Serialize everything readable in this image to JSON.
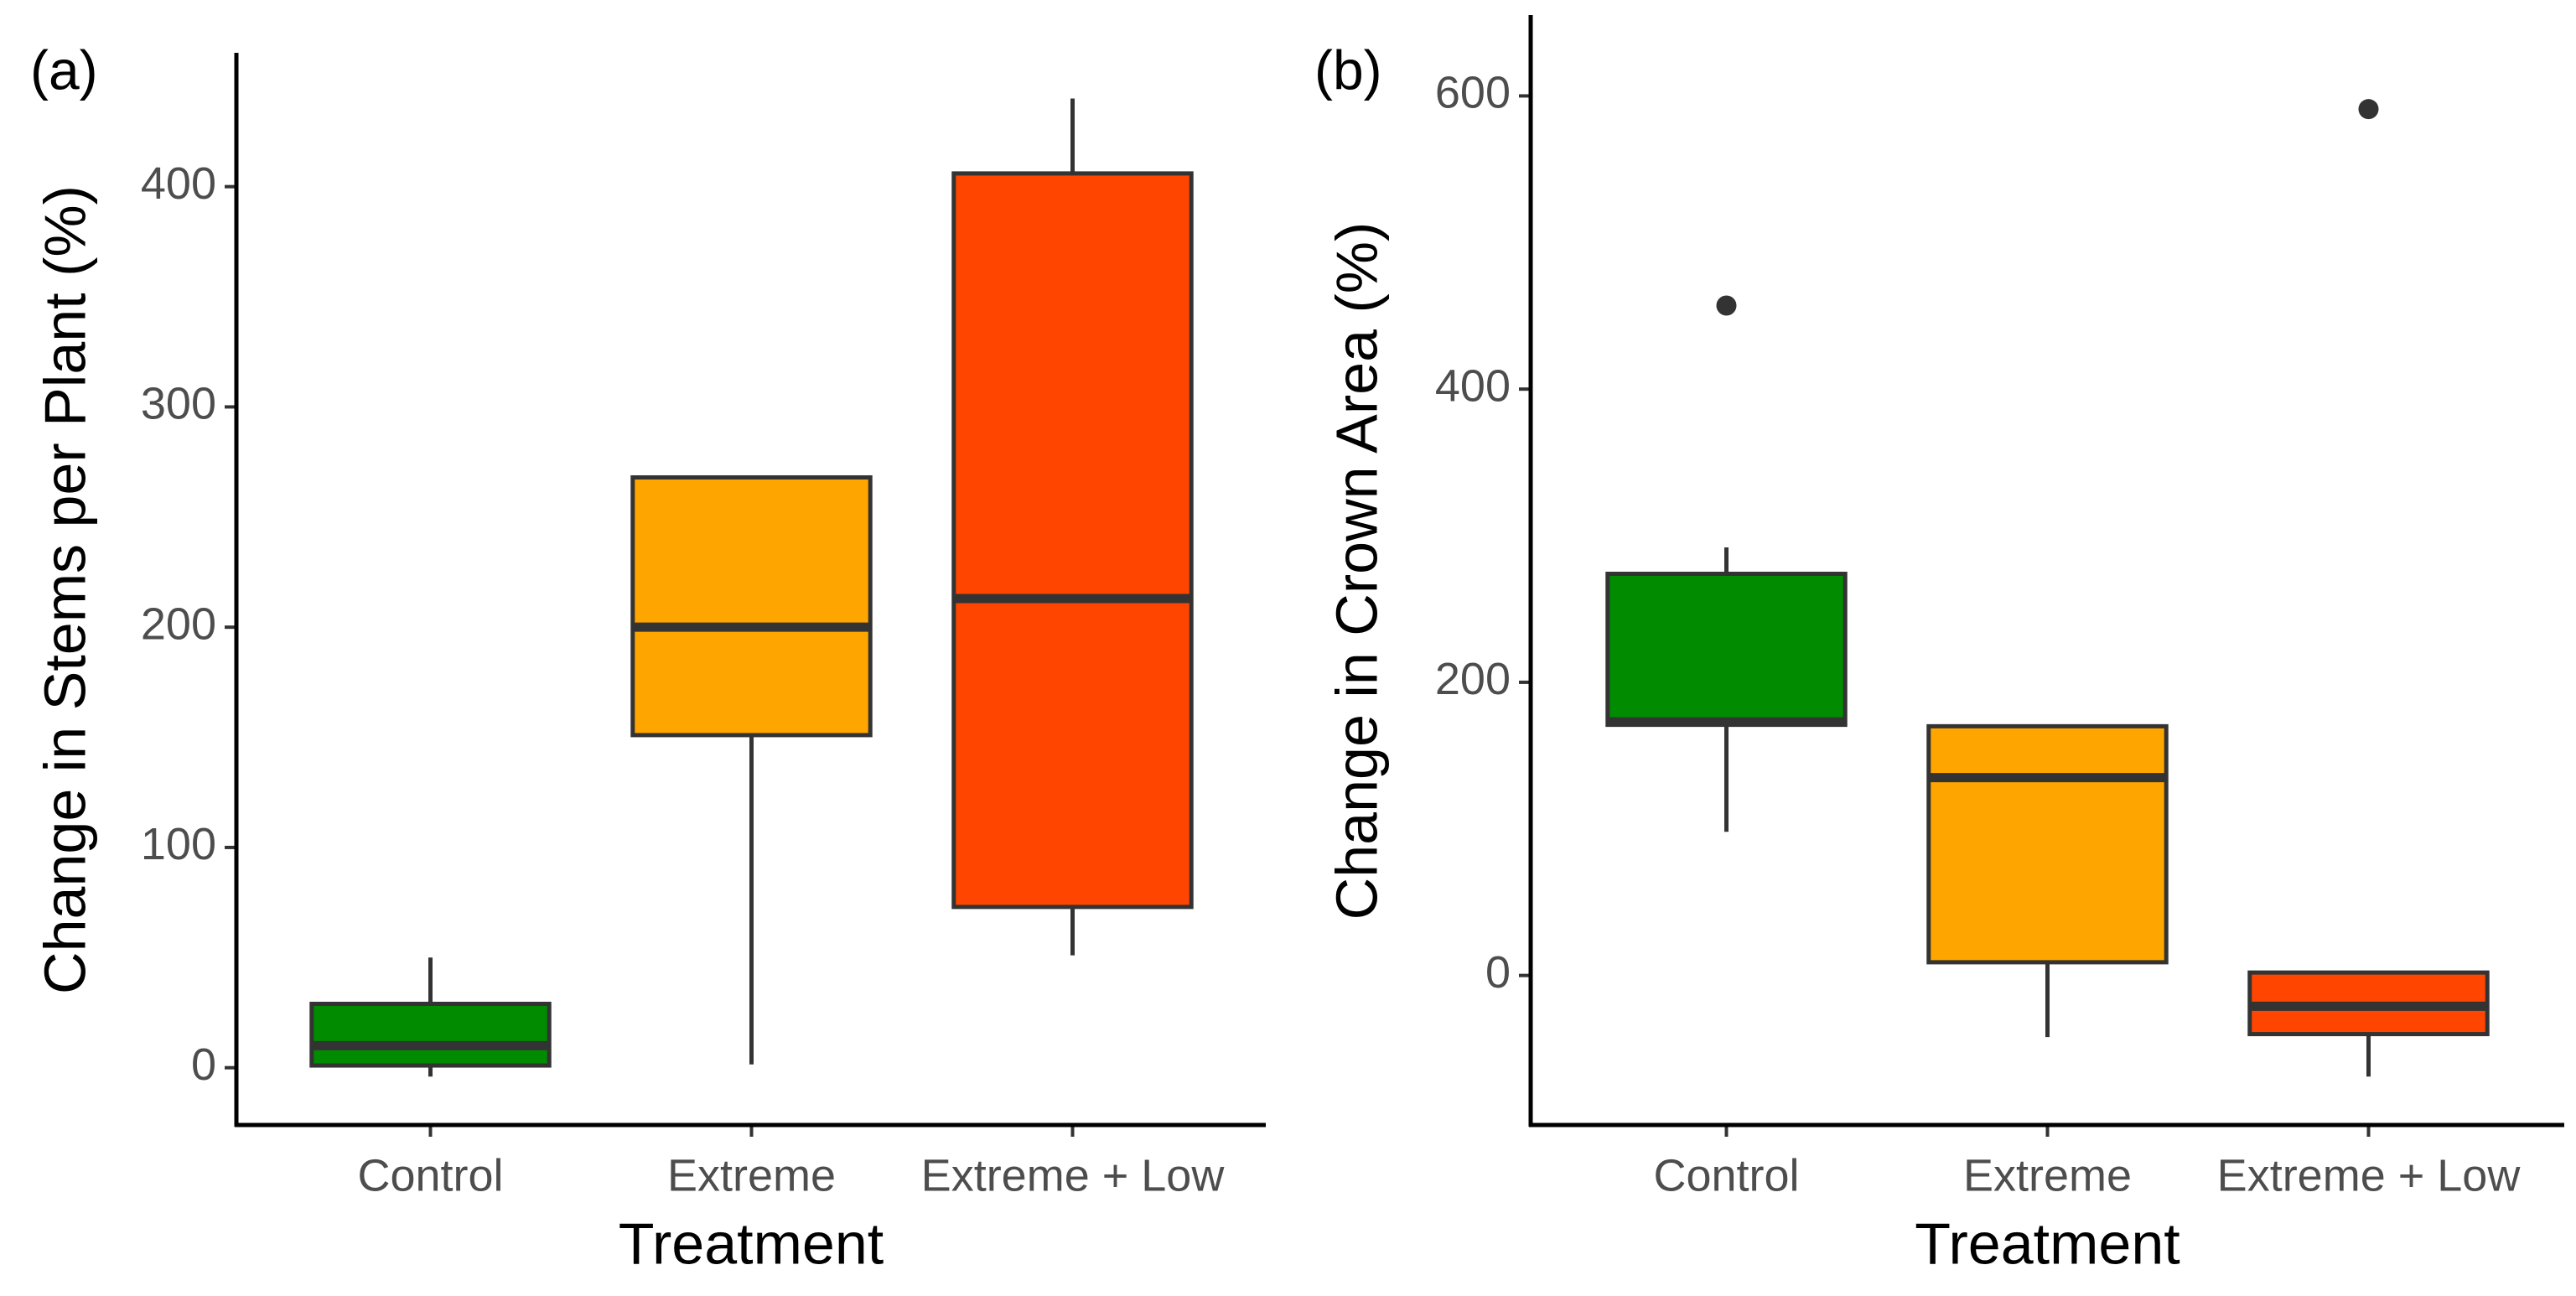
{
  "chart_data": [
    {
      "type": "box",
      "label": "(a)",
      "y_label": "Change in Stems per Plant (%)",
      "x_label": "Treatment",
      "categories": [
        "Control",
        "Extreme",
        "Extreme + Low"
      ],
      "colors": [
        "#008B00",
        "#FFA500",
        "#FF4500"
      ],
      "ylim": [
        -26,
        460
      ],
      "yticks": [
        0,
        100,
        200,
        300,
        400
      ],
      "boxes": [
        {
          "min": -4,
          "q1": 1,
          "median": 10,
          "q3": 29,
          "max": 50
        },
        {
          "min": 1.5,
          "q1": 151,
          "median": 200,
          "q3": 268,
          "max": 268
        },
        {
          "min": 51,
          "q1": 73,
          "median": 213,
          "q3": 406,
          "max": 440
        }
      ]
    },
    {
      "type": "box",
      "label": "(b)",
      "y_label": "Change in Crown Area (%)",
      "x_label": "Treatment",
      "categories": [
        "Control",
        "Extreme",
        "Extreme + Low"
      ],
      "colors": [
        "#008B00",
        "#FFA500",
        "#FF4500"
      ],
      "ylim": [
        -102,
        654
      ],
      "yticks": [
        0,
        200,
        400,
        600
      ],
      "boxes": [
        {
          "min": 98,
          "q1": 171,
          "median": 173,
          "q3": 274,
          "max": 292,
          "outliers": [
            457
          ]
        },
        {
          "min": -42,
          "q1": 9,
          "median": 135,
          "q3": 170,
          "max": 170
        },
        {
          "min": -69,
          "q1": -40,
          "median": -21,
          "q3": 2,
          "max": 2,
          "outliers": [
            591
          ]
        }
      ]
    }
  ]
}
